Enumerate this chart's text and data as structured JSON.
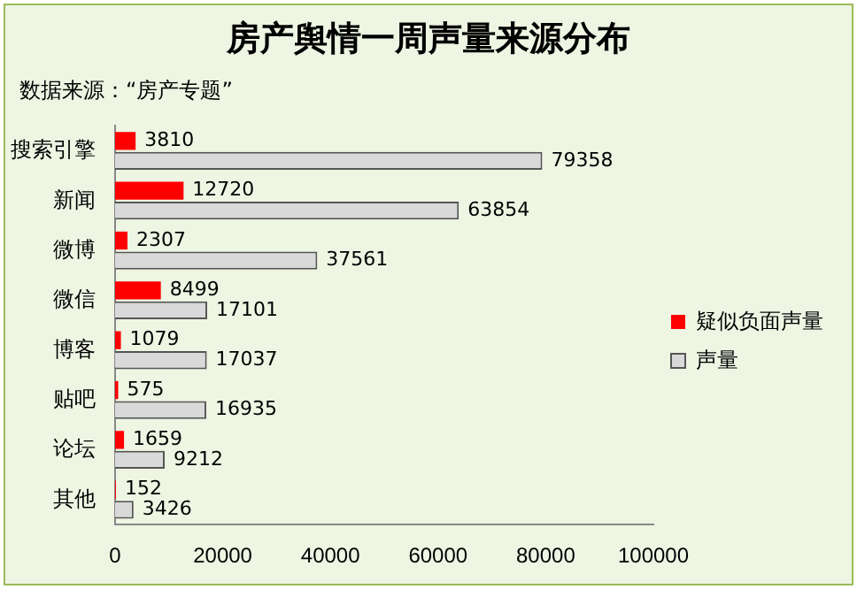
{
  "chart_data": {
    "type": "bar",
    "orientation": "horizontal",
    "title": "房产舆情一周声量来源分布",
    "subtitle": "数据来源：“房产专题”",
    "categories": [
      "搜索引擎",
      "新闻",
      "微博",
      "微信",
      "博客",
      "贴吧",
      "论坛",
      "其他"
    ],
    "series": [
      {
        "name": "疑似负面声量",
        "color": "#ff0000",
        "values": [
          3810,
          12720,
          2307,
          8499,
          1079,
          575,
          1659,
          152
        ]
      },
      {
        "name": "声量",
        "color": "#d9d9d9",
        "values": [
          79358,
          63854,
          37561,
          17101,
          17037,
          16935,
          9212,
          3426
        ]
      }
    ],
    "xlim": [
      0,
      100000
    ],
    "xticks": [
      0,
      20000,
      40000,
      60000,
      80000,
      100000
    ],
    "grid": false,
    "legend": "right",
    "data_labels": true
  }
}
